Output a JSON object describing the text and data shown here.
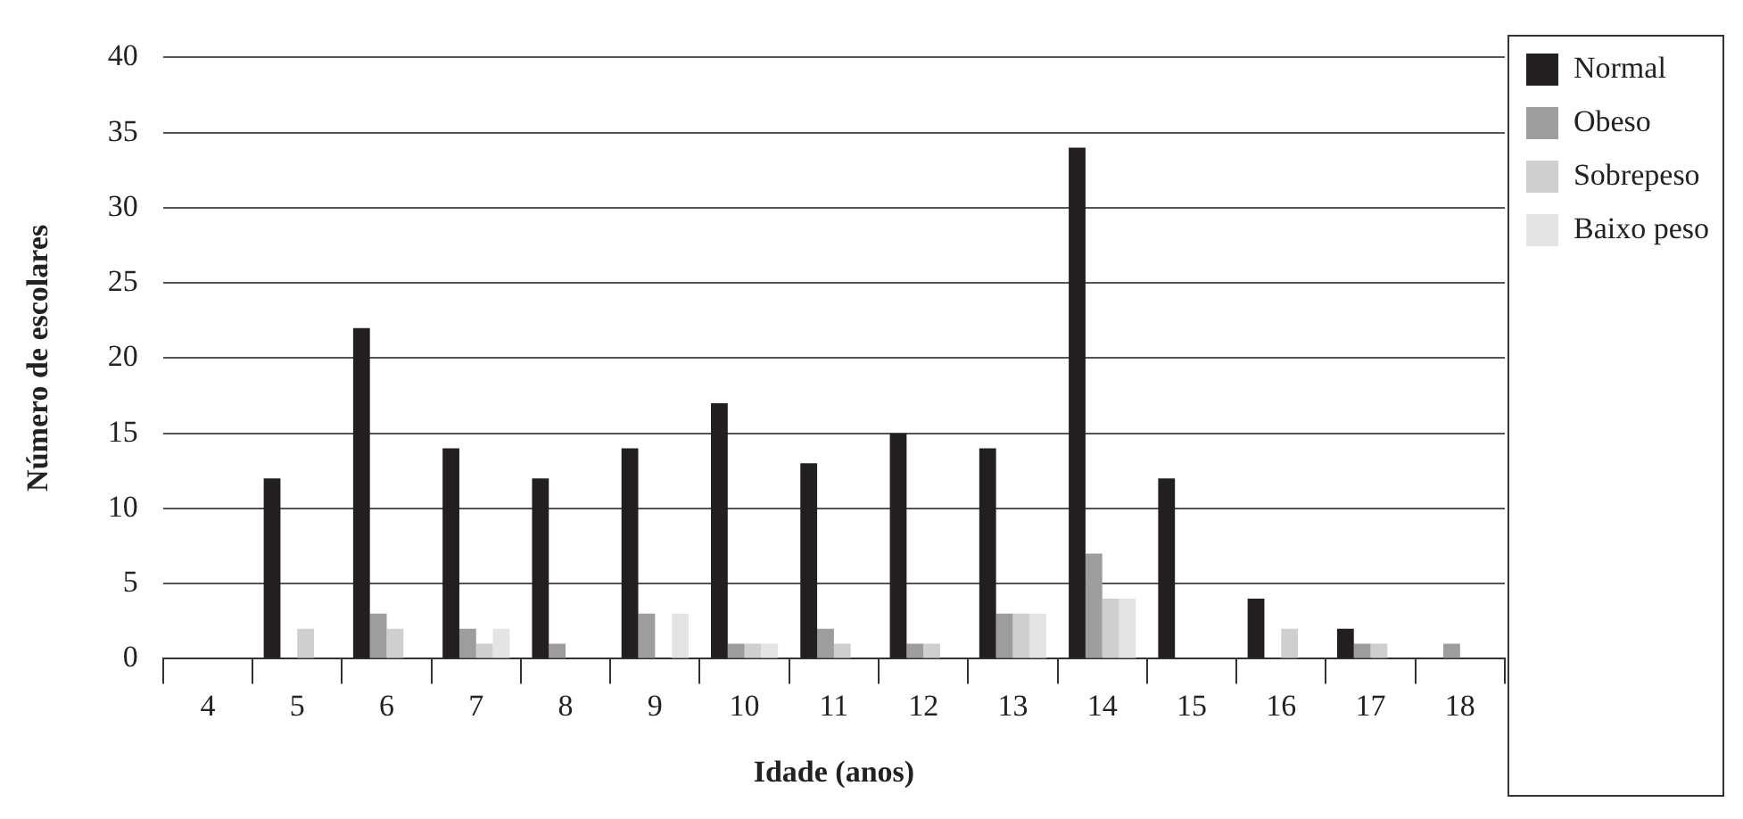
{
  "chart_data": {
    "type": "bar",
    "xlabel": "Idade (anos)",
    "ylabel": "Número de escolares",
    "categories": [
      "4",
      "5",
      "6",
      "7",
      "8",
      "9",
      "10",
      "11",
      "12",
      "13",
      "14",
      "15",
      "16",
      "17",
      "18"
    ],
    "series": [
      {
        "name": "Normal",
        "color": "#231f20",
        "values": [
          0,
          12,
          22,
          14,
          12,
          14,
          17,
          13,
          15,
          14,
          34,
          12,
          4,
          2,
          0
        ]
      },
      {
        "name": "Obeso",
        "color": "#9d9d9d",
        "values": [
          0,
          0,
          3,
          2,
          1,
          3,
          1,
          2,
          1,
          3,
          7,
          0,
          0,
          1,
          1
        ]
      },
      {
        "name": "Sobrepeso",
        "color": "#cfcfd0",
        "values": [
          0,
          2,
          2,
          1,
          0,
          0,
          1,
          1,
          1,
          3,
          4,
          0,
          2,
          1,
          0
        ]
      },
      {
        "name": "Baixo peso",
        "color": "#e4e4e5",
        "values": [
          0,
          0,
          0,
          2,
          0,
          3,
          1,
          0,
          0,
          3,
          4,
          0,
          0,
          0,
          0
        ]
      }
    ],
    "ylim": [
      0,
      40
    ],
    "yticks": [
      0,
      5,
      10,
      15,
      20,
      25,
      30,
      35,
      40
    ],
    "grid": "y",
    "legend": "right"
  }
}
